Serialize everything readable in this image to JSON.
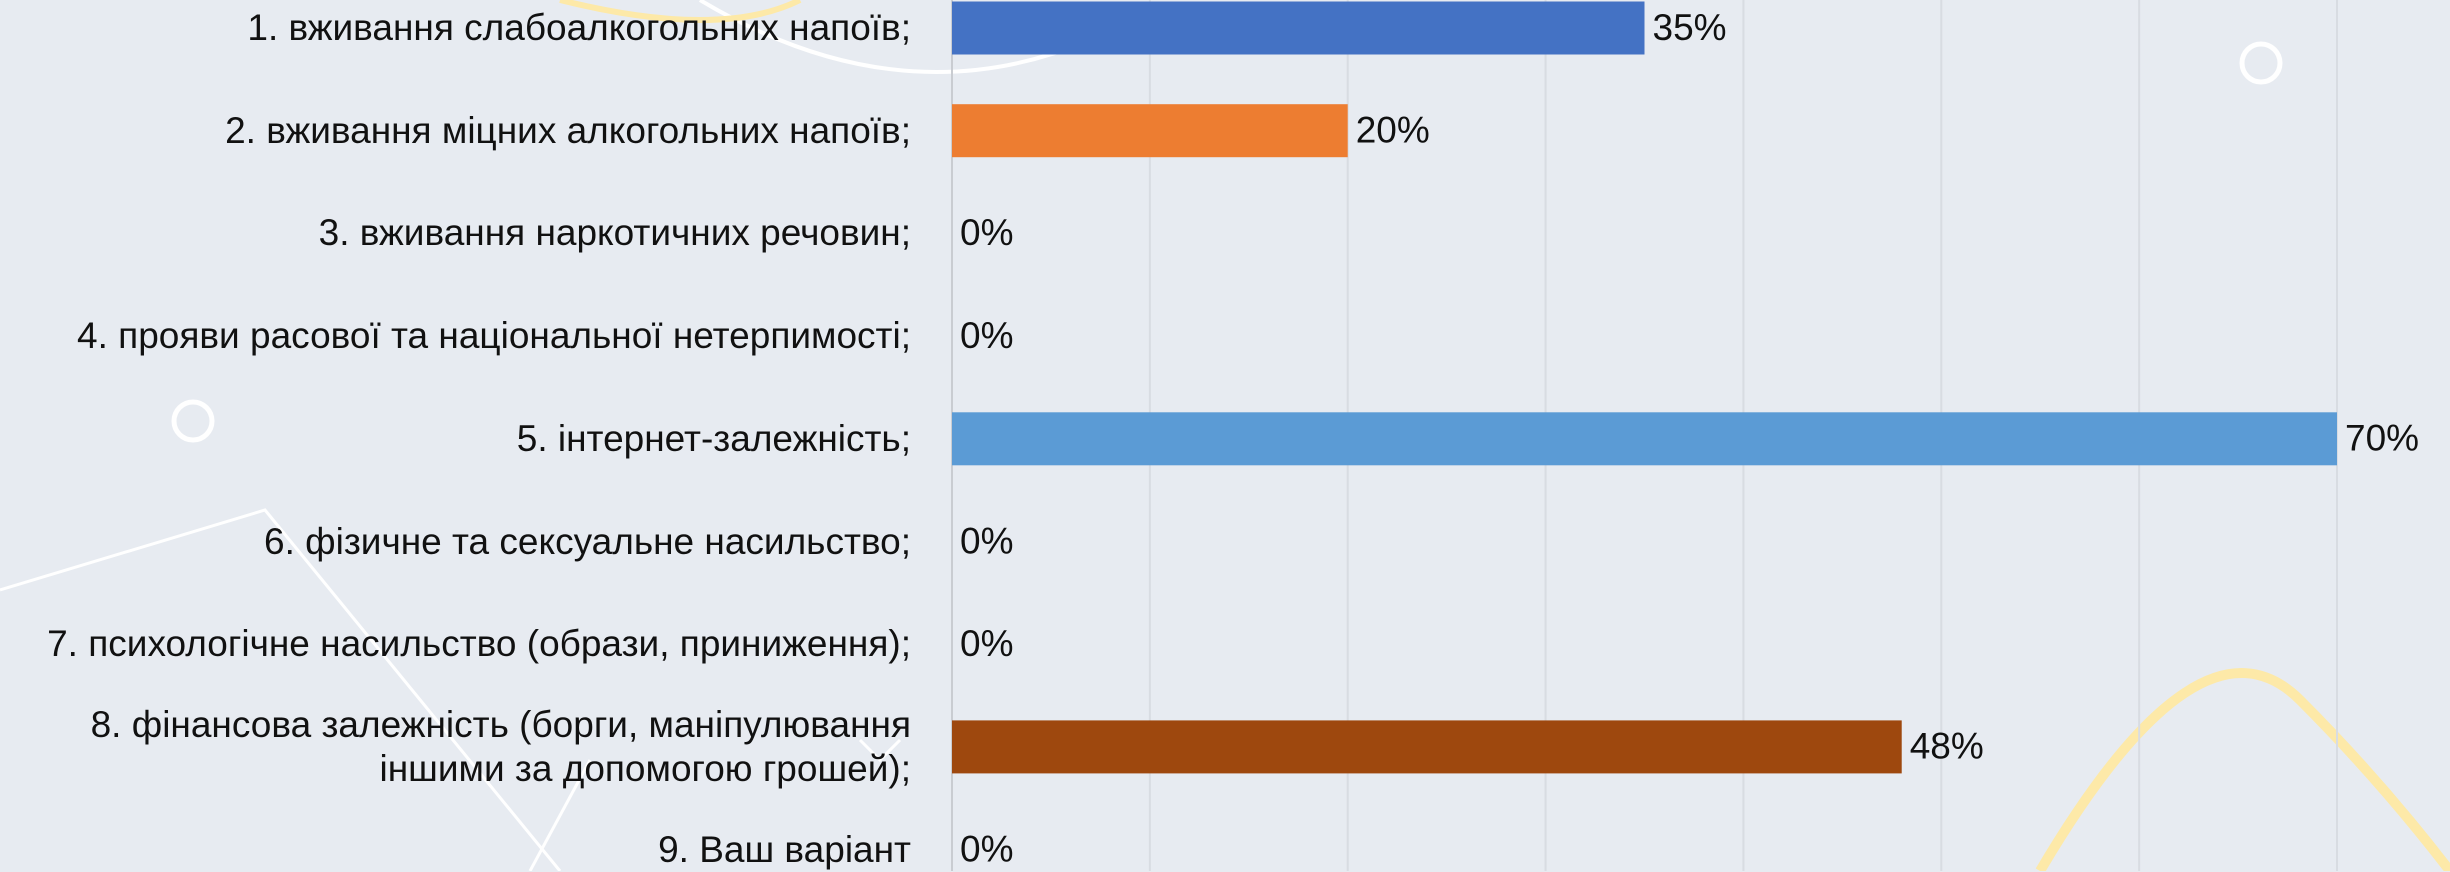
{
  "chart_data": {
    "type": "bar",
    "orientation": "horizontal",
    "categories": [
      "1. вживання слабоалкогольних напоїв;",
      "2. вживання міцних алкогольних напоїв;",
      "3. вживання наркотичних речовин;",
      "4. прояви расової та національної нетерпимості;",
      "5. інтернет-залежність;",
      "6. фізичне та сексуальне насильство;",
      "7. психологічне насильство (образи, приниження);",
      "8. фінансова залежність (борги, маніпулювання\nіншими за допомогою грошей);",
      "9. Ваш варіант"
    ],
    "values": [
      35,
      20,
      0,
      0,
      70,
      0,
      0,
      48,
      0
    ],
    "value_labels": [
      "35%",
      "20%",
      "0%",
      "0%",
      "70%",
      "0%",
      "0%",
      "48%",
      "0%"
    ],
    "colors": [
      "#4472c4",
      "#ed7d31",
      "#a5a5a5",
      "#ffc000",
      "#5b9bd5",
      "#70ad47",
      "#264478",
      "#9e480e",
      "#636363"
    ],
    "xlim": [
      0,
      70
    ],
    "xticks": [
      0,
      10,
      20,
      30,
      40,
      50,
      60,
      70
    ],
    "grid": true
  }
}
